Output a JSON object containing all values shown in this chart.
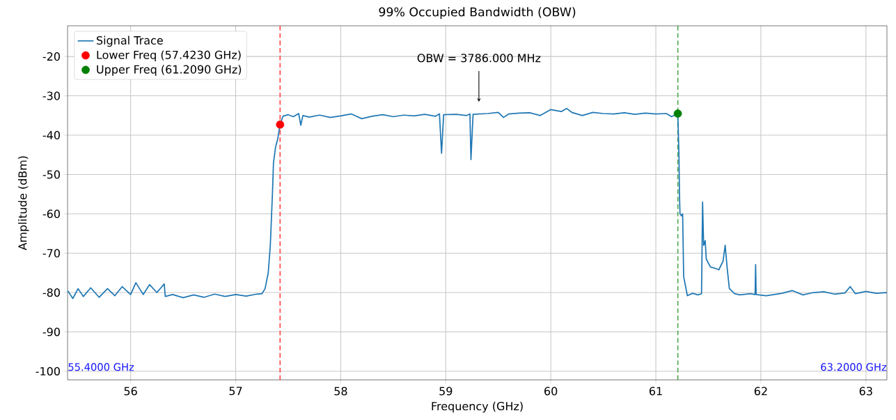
{
  "chart_data": {
    "type": "line",
    "title": "99% Occupied Bandwidth (OBW)",
    "xlabel": "Frequency (GHz)",
    "ylabel": "Amplitude (dBm)",
    "xlim": [
      55.4,
      63.2
    ],
    "ylim": [
      -102.2,
      -12.2
    ],
    "xticks": [
      56,
      57,
      58,
      59,
      60,
      61,
      62,
      63
    ],
    "yticks": [
      -100,
      -90,
      -80,
      -70,
      -60,
      -50,
      -40,
      -30,
      -20
    ],
    "grid": true,
    "legend": "top left",
    "series": [
      {
        "name": "Signal Trace",
        "color": "#1f77b4",
        "x": [
          55.4,
          55.45,
          55.5,
          55.55,
          55.62,
          55.7,
          55.78,
          55.85,
          55.92,
          56.0,
          56.05,
          56.12,
          56.18,
          56.25,
          56.32,
          56.33,
          56.4,
          56.5,
          56.6,
          56.7,
          56.8,
          56.9,
          57.0,
          57.1,
          57.2,
          57.25,
          57.28,
          57.31,
          57.33,
          57.35,
          57.36,
          57.38,
          57.4,
          57.423,
          57.45,
          57.5,
          57.55,
          57.6,
          57.62,
          57.64,
          57.7,
          57.8,
          57.9,
          58.0,
          58.1,
          58.2,
          58.3,
          58.4,
          58.5,
          58.6,
          58.7,
          58.8,
          58.9,
          58.94,
          58.96,
          58.98,
          59.1,
          59.2,
          59.23,
          59.24,
          59.26,
          59.4,
          59.5,
          59.55,
          59.6,
          59.7,
          59.8,
          59.9,
          60.0,
          60.1,
          60.15,
          60.2,
          60.3,
          60.4,
          60.5,
          60.6,
          60.7,
          60.8,
          60.9,
          61.0,
          61.1,
          61.15,
          61.209,
          61.22,
          61.225,
          61.23,
          61.245,
          61.255,
          61.265,
          61.28,
          61.3,
          61.35,
          61.4,
          61.435,
          61.445,
          61.455,
          61.47,
          61.48,
          61.52,
          61.56,
          61.6,
          61.64,
          61.66,
          61.68,
          61.7,
          61.75,
          61.8,
          61.9,
          61.945,
          61.95,
          61.955,
          62.05,
          62.2,
          62.3,
          62.4,
          62.5,
          62.6,
          62.7,
          62.8,
          62.85,
          62.9,
          63.0,
          63.1,
          63.2
        ],
        "values": [
          -79.5,
          -81.5,
          -79,
          -81,
          -78.8,
          -81.2,
          -79,
          -80.8,
          -78.5,
          -80.5,
          -77.5,
          -80.5,
          -78,
          -80,
          -77.8,
          -81,
          -80.5,
          -81.3,
          -80.6,
          -81.2,
          -80.4,
          -81,
          -80.5,
          -80.9,
          -80.4,
          -80.3,
          -79,
          -75,
          -68,
          -55,
          -47,
          -43,
          -41,
          -37.3,
          -35.2,
          -34.8,
          -35.3,
          -34.5,
          -37.5,
          -35,
          -35.4,
          -34.9,
          -35.5,
          -35.1,
          -34.6,
          -35.8,
          -35.2,
          -34.8,
          -35.3,
          -34.9,
          -35.1,
          -34.7,
          -35.2,
          -34.6,
          -44.6,
          -34.8,
          -34.7,
          -35,
          -34.6,
          -46.2,
          -34.7,
          -34.5,
          -34.2,
          -35.5,
          -34.6,
          -34.4,
          -34.3,
          -35,
          -33.5,
          -34,
          -33.2,
          -34.2,
          -35,
          -34.2,
          -34.5,
          -34.6,
          -34.3,
          -34.7,
          -34.4,
          -34.6,
          -34.5,
          -35.3,
          -34.5,
          -45,
          -55,
          -60,
          -60.5,
          -60,
          -76,
          -78,
          -80.8,
          -80.2,
          -80.6,
          -80.3,
          -57,
          -68,
          -66.8,
          -71.5,
          -73.5,
          -73.8,
          -74.2,
          -72,
          -68,
          -74,
          -79,
          -80.3,
          -80.6,
          -80.3,
          -80.5,
          -72.9,
          -80.5,
          -80.8,
          -80.2,
          -79.5,
          -80.6,
          -80,
          -79.8,
          -80.4,
          -80.1,
          -78.5,
          -80.3,
          -79.7,
          -80.2,
          -80
        ]
      },
      {
        "name": "Lower Freq (57.4230 GHz)",
        "type": "scatter",
        "color": "#ff0000",
        "x": [
          57.423
        ],
        "values": [
          -37.3
        ]
      },
      {
        "name": "Upper Freq (61.2090 GHz)",
        "type": "scatter",
        "color": "#008000",
        "x": [
          61.209
        ],
        "values": [
          -34.5
        ]
      }
    ],
    "ref_lines": [
      {
        "axis": "x",
        "value": 57.423,
        "color": "#ff4a4a",
        "line_style": "dashed"
      },
      {
        "axis": "x",
        "value": 61.209,
        "color": "#4aa84a",
        "line_style": "dashed"
      }
    ],
    "annotations": [
      "OBW = 3786.000 MHz",
      "55.4000 GHz",
      "63.2000 GHz"
    ]
  }
}
